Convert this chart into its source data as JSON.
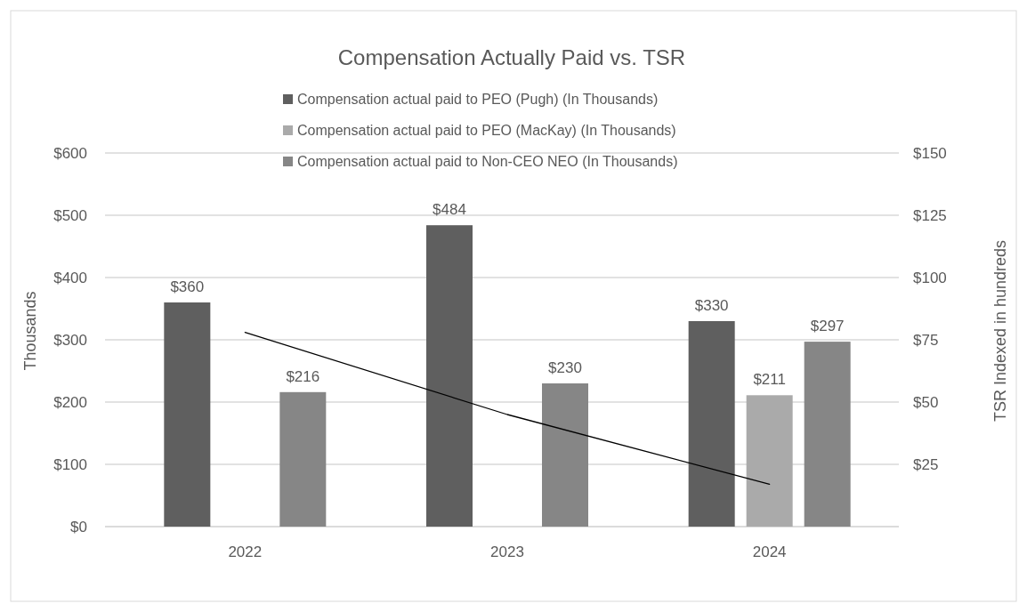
{
  "chart_data": {
    "type": "bar",
    "title": "Compensation Actually Paid vs. TSR",
    "categories": [
      "2022",
      "2023",
      "2024"
    ],
    "series": [
      {
        "name": "Compensation actual paid to PEO (Pugh) (In Thousands)",
        "color": "#5f5f5f",
        "values": [
          360,
          484,
          330
        ],
        "value_labels": [
          "$360",
          "$484",
          "$330"
        ]
      },
      {
        "name": "Compensation actual paid to PEO (MacKay) (In Thousands)",
        "color": "#aaaaaa",
        "values": [
          null,
          null,
          211
        ],
        "value_labels": [
          null,
          null,
          "$211"
        ]
      },
      {
        "name": "Compensation actual paid to Non-CEO NEO (In Thousands)",
        "color": "#868686",
        "values": [
          216,
          230,
          297
        ],
        "value_labels": [
          "$216",
          "$230",
          "$297"
        ]
      },
      {
        "type": "line",
        "axis": "y2",
        "color": "#000000",
        "values": [
          78,
          45,
          17
        ]
      }
    ],
    "ylabel": "Thousands",
    "y2label": "TSR Indexed in hundreds",
    "ylim": [
      0,
      600
    ],
    "yticks": [
      {
        "value": 0,
        "label": "$0"
      },
      {
        "value": 100,
        "label": "$100"
      },
      {
        "value": 200,
        "label": "$200"
      },
      {
        "value": 300,
        "label": "$300"
      },
      {
        "value": 400,
        "label": "$400"
      },
      {
        "value": 500,
        "label": "$500"
      },
      {
        "value": 600,
        "label": "$600"
      }
    ],
    "y2lim": [
      0,
      150
    ],
    "y2ticks": [
      {
        "value": 25,
        "label": "$25"
      },
      {
        "value": 50,
        "label": "$50"
      },
      {
        "value": 75,
        "label": "$75"
      },
      {
        "value": 100,
        "label": "$100"
      },
      {
        "value": 125,
        "label": "$125"
      },
      {
        "value": 150,
        "label": "$150"
      }
    ],
    "grid": "y",
    "legend": "top",
    "marker": "none"
  }
}
